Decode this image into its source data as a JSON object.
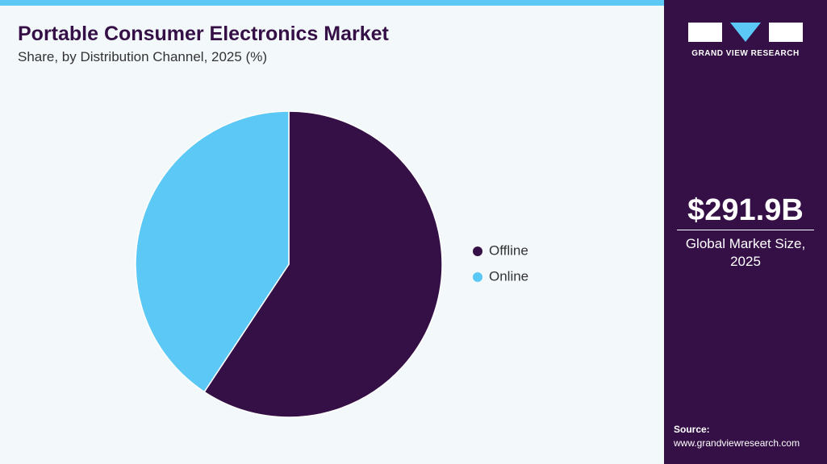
{
  "chart_data": {
    "type": "pie",
    "title": "Portable Consumer Electronics Market",
    "subtitle": "Share, by Distribution Channel, 2025 (%)",
    "categories": [
      "Offline",
      "Online"
    ],
    "values": [
      59.3,
      40.7
    ],
    "colors": [
      "#351046",
      "#5bc8f5"
    ]
  },
  "panel": {
    "brand": "GRAND VIEW RESEARCH",
    "market_size": "$291.9B",
    "market_label": "Global Market Size, 2025",
    "source_label": "Source:",
    "source_url": "www.grandviewresearch.com"
  }
}
